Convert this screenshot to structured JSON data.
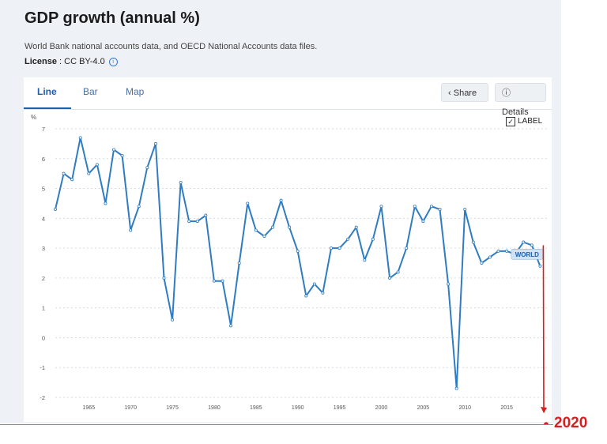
{
  "header": {
    "title": "GDP growth (annual %)",
    "source": "World Bank national accounts data, and OECD National Accounts data files.",
    "license_label": "License",
    "license_value": " : CC BY-4.0"
  },
  "tabs": [
    {
      "label": "Line",
      "active": true
    },
    {
      "label": "Bar",
      "active": false
    },
    {
      "label": "Map",
      "active": false
    }
  ],
  "buttons": {
    "share": "Share",
    "details": "Details",
    "label_toggle": "LABEL"
  },
  "annotation": {
    "text": "2020",
    "color": "#d62020"
  },
  "colors": {
    "line": "#2f7cc1",
    "accent": "#1d5fa8",
    "annotation": "#d62020"
  },
  "chart_data": {
    "type": "line",
    "ylabel": "%",
    "ylim": [
      -2,
      7
    ],
    "xlim": [
      1961,
      2020
    ],
    "grid": true,
    "y_ticks": [
      7,
      6,
      5,
      4,
      3,
      2,
      1,
      0,
      -1,
      -2
    ],
    "x_ticks": [
      1965,
      1970,
      1975,
      1980,
      1985,
      1990,
      1995,
      2000,
      2005,
      2010,
      2015
    ],
    "series_label": "WORLD",
    "series": [
      {
        "x": [
          1961,
          1962,
          1963,
          1964,
          1965,
          1966,
          1967,
          1968,
          1969,
          1970,
          1971,
          1972,
          1973,
          1974,
          1975,
          1976,
          1977,
          1978,
          1979,
          1980,
          1981,
          1982,
          1983,
          1984,
          1985,
          1986,
          1987,
          1988,
          1989,
          1990,
          1991,
          1992,
          1993,
          1994,
          1995,
          1996,
          1997,
          1998,
          1999,
          2000,
          2001,
          2002,
          2003,
          2004,
          2005,
          2006,
          2007,
          2008,
          2009,
          2010,
          2011,
          2012,
          2013,
          2014,
          2015,
          2016,
          2017,
          2018,
          2019
        ],
        "values": [
          4.3,
          5.5,
          5.3,
          6.7,
          5.5,
          5.8,
          4.5,
          6.3,
          6.1,
          3.6,
          4.4,
          5.7,
          6.5,
          2.0,
          0.6,
          5.2,
          3.9,
          3.9,
          4.1,
          1.9,
          1.9,
          0.4,
          2.5,
          4.5,
          3.6,
          3.4,
          3.7,
          4.6,
          3.7,
          2.9,
          1.4,
          1.8,
          1.5,
          3.0,
          3.0,
          3.3,
          3.7,
          2.6,
          3.3,
          4.4,
          2.0,
          2.2,
          3.0,
          4.4,
          3.9,
          4.4,
          4.3,
          1.8,
          -1.7,
          4.3,
          3.2,
          2.5,
          2.7,
          2.9,
          2.9,
          2.8,
          3.2,
          3.1,
          2.4
        ]
      }
    ],
    "annotation_year": 2020
  }
}
